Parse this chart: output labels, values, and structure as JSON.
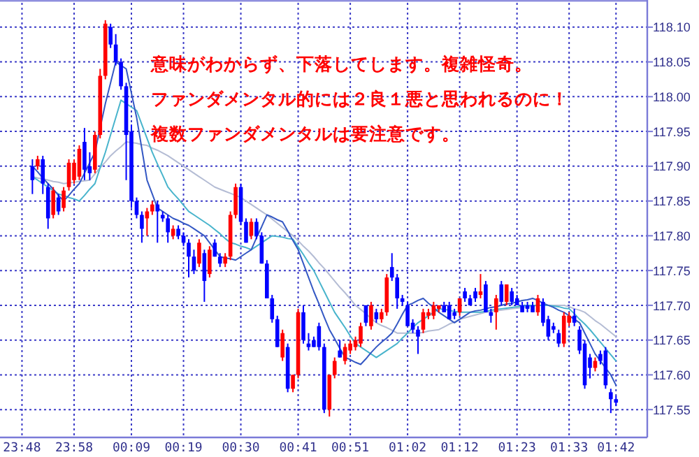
{
  "chart_data": {
    "type": "candlestick",
    "annotations": [
      "意味がわからず、下落してします。複雑怪奇。",
      "ファンダメンタル的には２良１悪と思われるのに！",
      "複数ファンダメンタルは要注意です。"
    ],
    "ylim": [
      117.51,
      118.135
    ],
    "grid": true,
    "yticks": [
      {
        "value": 117.55,
        "label": "117.55"
      },
      {
        "value": 117.6,
        "label": "117.60"
      },
      {
        "value": 117.65,
        "label": "117.65"
      },
      {
        "value": 117.7,
        "label": "117.70"
      },
      {
        "value": 117.75,
        "label": "117.75"
      },
      {
        "value": 117.8,
        "label": "117.80"
      },
      {
        "value": 117.85,
        "label": "117.85"
      },
      {
        "value": 117.9,
        "label": "117.90"
      },
      {
        "value": 117.95,
        "label": "117.95"
      },
      {
        "value": 118.0,
        "label": "118.00"
      },
      {
        "value": 118.05,
        "label": "118.05"
      },
      {
        "value": 118.1,
        "label": "118.10"
      }
    ],
    "categories": [
      "23:48",
      null,
      null,
      null,
      null,
      null,
      null,
      null,
      null,
      null,
      "23:58",
      null,
      null,
      null,
      null,
      null,
      null,
      null,
      null,
      null,
      null,
      "00:09",
      null,
      null,
      null,
      null,
      null,
      null,
      null,
      null,
      null,
      "00:19",
      null,
      null,
      null,
      null,
      null,
      null,
      null,
      null,
      null,
      null,
      "00:30",
      null,
      null,
      null,
      null,
      null,
      null,
      null,
      null,
      null,
      null,
      "00:41",
      null,
      null,
      null,
      null,
      null,
      null,
      null,
      null,
      null,
      "00:51",
      null,
      null,
      null,
      null,
      null,
      null,
      null,
      null,
      null,
      null,
      "01:02",
      null,
      null,
      null,
      null,
      null,
      null,
      null,
      null,
      null,
      "01:12",
      null,
      null,
      null,
      null,
      null,
      null,
      null,
      null,
      null,
      null,
      "01:23",
      null,
      null,
      null,
      null,
      null,
      null,
      null,
      null,
      null,
      "01:33",
      null,
      null,
      null,
      null,
      null,
      null,
      null,
      null,
      "01:42"
    ],
    "ohlc": [
      null,
      null,
      [
        117.9,
        117.91,
        117.86,
        117.88
      ],
      [
        117.9,
        117.915,
        117.895,
        117.91
      ],
      [
        117.91,
        117.915,
        117.86,
        117.875
      ],
      [
        117.87,
        117.875,
        117.81,
        117.825
      ],
      [
        117.83,
        117.87,
        117.825,
        117.865
      ],
      [
        117.855,
        117.86,
        117.83,
        117.835
      ],
      [
        117.84,
        117.87,
        117.835,
        117.865
      ],
      [
        117.87,
        117.91,
        117.865,
        117.905
      ],
      [
        117.88,
        117.91,
        117.875,
        117.905
      ],
      [
        117.885,
        117.93,
        117.88,
        117.925
      ],
      [
        117.935,
        117.955,
        117.88,
        117.895
      ],
      [
        117.9,
        117.92,
        117.88,
        117.89
      ],
      [
        117.895,
        117.95,
        117.89,
        117.945
      ],
      [
        117.945,
        118.04,
        117.94,
        118.03
      ],
      [
        118.03,
        118.11,
        118.025,
        118.105
      ],
      [
        118.1,
        118.105,
        118.07,
        118.075
      ],
      [
        118.075,
        118.09,
        118.045,
        118.05
      ],
      [
        118.05,
        118.055,
        118.01,
        118.015
      ],
      [
        118.015,
        118.02,
        117.88,
        117.945
      ],
      [
        117.95,
        117.96,
        117.84,
        117.85
      ],
      [
        117.85,
        117.855,
        117.825,
        117.83
      ],
      [
        117.83,
        117.835,
        117.79,
        117.81
      ],
      [
        117.825,
        117.84,
        117.8,
        117.835
      ],
      [
        117.835,
        117.85,
        117.83,
        117.845
      ],
      [
        117.845,
        117.85,
        117.79,
        117.835
      ],
      [
        117.83,
        117.835,
        117.82,
        117.825
      ],
      [
        117.825,
        117.83,
        117.79,
        117.805
      ],
      [
        117.8,
        117.815,
        117.795,
        117.81
      ],
      [
        117.81,
        117.815,
        117.795,
        117.8
      ],
      [
        117.8,
        117.805,
        117.785,
        117.79
      ],
      [
        117.79,
        117.795,
        117.74,
        117.77
      ],
      [
        117.77,
        117.78,
        117.745,
        117.75
      ],
      [
        117.76,
        117.795,
        117.755,
        117.79
      ],
      [
        117.775,
        117.78,
        117.705,
        117.735
      ],
      [
        117.745,
        117.785,
        117.74,
        117.78
      ],
      [
        117.79,
        117.795,
        117.77,
        117.77
      ],
      [
        117.77,
        117.775,
        117.755,
        117.76
      ],
      [
        117.76,
        117.775,
        117.755,
        117.77
      ],
      [
        117.77,
        117.835,
        117.765,
        117.83
      ],
      [
        117.83,
        117.875,
        117.825,
        117.87
      ],
      [
        117.87,
        117.875,
        117.815,
        117.82
      ],
      [
        117.82,
        117.825,
        117.79,
        117.79
      ],
      [
        117.8,
        117.825,
        117.795,
        117.82
      ],
      [
        117.82,
        117.825,
        117.795,
        117.8
      ],
      [
        117.8,
        117.805,
        117.76,
        117.76
      ],
      [
        117.76,
        117.765,
        117.71,
        117.71
      ],
      [
        117.71,
        117.715,
        117.675,
        117.68
      ],
      [
        117.68,
        117.685,
        117.64,
        117.64
      ],
      [
        117.625,
        117.665,
        117.62,
        117.66
      ],
      [
        117.64,
        117.645,
        117.575,
        117.58
      ],
      [
        117.58,
        117.6,
        117.575,
        117.6
      ],
      [
        117.6,
        117.695,
        117.595,
        117.69
      ],
      [
        117.69,
        117.7,
        117.645,
        117.65
      ],
      [
        117.645,
        117.66,
        117.635,
        117.64
      ],
      [
        117.65,
        117.655,
        117.64,
        117.64
      ],
      [
        117.67,
        117.675,
        117.635,
        117.64
      ],
      [
        117.64,
        117.645,
        117.545,
        117.55
      ],
      [
        117.55,
        117.6,
        117.54,
        117.6
      ],
      [
        117.6,
        117.625,
        117.595,
        117.62
      ],
      [
        117.635,
        117.65,
        117.625,
        117.625
      ],
      [
        117.62,
        117.645,
        117.615,
        117.64
      ],
      [
        117.635,
        117.65,
        117.63,
        117.645
      ],
      [
        117.64,
        117.655,
        117.635,
        117.65
      ],
      [
        117.645,
        117.675,
        117.64,
        117.67
      ],
      [
        117.7,
        117.7,
        117.67,
        117.675
      ],
      [
        117.67,
        117.705,
        117.665,
        117.7
      ],
      [
        117.69,
        117.695,
        117.675,
        117.68
      ],
      [
        117.68,
        117.695,
        117.675,
        117.69
      ],
      [
        117.69,
        117.745,
        117.685,
        117.74
      ],
      [
        117.755,
        117.775,
        117.735,
        117.74
      ],
      [
        117.74,
        117.745,
        117.695,
        117.71
      ],
      [
        117.71,
        117.715,
        117.7,
        117.705
      ],
      [
        117.7,
        117.705,
        117.67,
        117.67
      ],
      [
        117.675,
        117.68,
        117.66,
        117.665
      ],
      [
        117.665,
        117.67,
        117.63,
        117.655
      ],
      [
        117.665,
        117.695,
        117.66,
        117.69
      ],
      [
        117.685,
        117.695,
        117.68,
        117.69
      ],
      [
        117.685,
        117.705,
        117.68,
        117.7
      ],
      [
        117.695,
        117.7,
        117.69,
        117.7
      ],
      [
        117.7,
        117.705,
        117.69,
        117.69
      ],
      [
        117.7,
        117.705,
        117.68,
        117.68
      ],
      [
        117.69,
        117.695,
        117.68,
        117.685
      ],
      [
        117.69,
        117.71,
        117.685,
        117.71
      ],
      [
        117.72,
        117.725,
        117.705,
        117.71
      ],
      [
        117.71,
        117.715,
        117.7,
        117.7
      ],
      [
        117.72,
        117.725,
        117.705,
        117.71
      ],
      [
        117.715,
        117.745,
        117.71,
        117.72
      ],
      [
        117.73,
        117.735,
        117.69,
        117.69
      ],
      [
        117.69,
        117.695,
        117.675,
        117.685
      ],
      [
        117.69,
        117.715,
        117.665,
        117.71
      ],
      [
        117.73,
        117.735,
        117.7,
        117.705
      ],
      [
        117.705,
        117.73,
        117.7,
        117.73
      ],
      [
        117.72,
        117.725,
        117.7,
        117.705
      ],
      [
        117.71,
        117.715,
        117.7,
        117.7
      ],
      [
        117.7,
        117.705,
        117.69,
        117.69
      ],
      [
        117.7,
        117.705,
        117.69,
        117.695
      ],
      [
        117.7,
        117.705,
        117.69,
        117.69
      ],
      [
        117.69,
        117.715,
        117.685,
        117.71
      ],
      [
        117.705,
        117.71,
        117.67,
        117.675
      ],
      [
        117.68,
        117.685,
        117.65,
        117.655
      ],
      [
        117.67,
        117.675,
        117.66,
        117.665
      ],
      [
        117.66,
        117.665,
        117.64,
        117.645
      ],
      [
        117.645,
        117.69,
        117.64,
        117.685
      ],
      [
        117.675,
        117.69,
        117.67,
        117.685
      ],
      [
        117.685,
        117.695,
        117.67,
        117.675
      ],
      [
        117.665,
        117.67,
        117.63,
        117.635
      ],
      [
        117.645,
        117.65,
        117.58,
        117.585
      ],
      [
        117.625,
        117.63,
        117.595,
        117.61
      ],
      [
        117.61,
        117.625,
        117.605,
        117.62
      ],
      [
        117.63,
        117.635,
        117.615,
        117.62
      ],
      [
        117.635,
        117.64,
        117.58,
        117.585
      ],
      [
        117.575,
        117.58,
        117.545,
        117.565
      ],
      [
        117.565,
        117.57,
        117.555,
        117.56
      ]
    ],
    "series": [
      {
        "type": "line",
        "color": "#b4bcd4",
        "values": [
          null,
          null,
          117.885,
          117.883,
          117.882,
          117.88,
          117.878,
          117.877,
          117.875,
          117.876,
          117.877,
          117.878,
          117.879,
          117.88,
          117.889,
          117.898,
          117.906,
          117.915,
          117.922,
          117.928,
          117.935,
          117.934,
          117.933,
          117.931,
          117.93,
          117.926,
          117.923,
          117.919,
          117.915,
          117.91,
          117.905,
          117.9,
          117.895,
          117.89,
          117.885,
          117.88,
          117.875,
          117.87,
          117.867,
          117.864,
          117.861,
          117.858,
          117.855,
          117.85,
          117.845,
          117.84,
          117.835,
          117.83,
          117.824,
          117.818,
          117.812,
          117.806,
          117.8,
          117.793,
          117.785,
          117.778,
          117.77,
          117.761,
          117.753,
          117.744,
          117.735,
          117.726,
          117.718,
          117.709,
          117.7,
          117.694,
          117.688,
          117.681,
          117.675,
          117.671,
          117.668,
          117.664,
          117.66,
          117.66,
          117.66,
          117.66,
          117.66,
          117.661,
          117.663,
          117.664,
          117.665,
          117.669,
          117.673,
          117.676,
          117.68,
          117.682,
          117.684,
          117.686,
          117.688,
          117.69,
          117.691,
          117.692,
          117.693,
          117.694,
          117.695,
          117.696,
          117.697,
          117.698,
          117.699,
          117.7,
          117.7,
          117.7,
          117.7,
          117.7,
          117.7,
          117.698,
          117.695,
          117.693,
          117.69,
          117.684,
          117.678,
          117.673,
          117.667,
          117.661,
          117.655
        ]
      },
      {
        "type": "line",
        "color": "#48b4cc",
        "values": [
          null,
          null,
          117.885,
          117.88,
          117.875,
          117.87,
          117.865,
          117.86,
          117.858,
          117.855,
          117.853,
          117.85,
          117.858,
          117.867,
          117.875,
          117.898,
          117.92,
          117.945,
          117.97,
          117.995,
          117.99,
          117.985,
          117.98,
          117.96,
          117.94,
          117.92,
          117.903,
          117.887,
          117.87,
          117.861,
          117.853,
          117.844,
          117.835,
          117.83,
          117.825,
          117.82,
          117.815,
          117.809,
          117.803,
          117.796,
          117.79,
          117.788,
          117.785,
          117.783,
          117.78,
          117.785,
          117.79,
          117.795,
          117.8,
          117.799,
          117.798,
          117.796,
          117.795,
          117.784,
          117.773,
          117.761,
          117.75,
          117.735,
          117.72,
          117.705,
          117.69,
          117.679,
          117.668,
          117.656,
          117.645,
          117.64,
          117.635,
          117.63,
          117.625,
          117.63,
          117.635,
          117.64,
          117.645,
          117.653,
          117.66,
          117.668,
          117.675,
          117.68,
          117.685,
          117.69,
          117.695,
          117.694,
          117.693,
          117.691,
          117.69,
          117.69,
          117.69,
          117.69,
          117.69,
          117.691,
          117.693,
          117.694,
          117.695,
          117.696,
          117.697,
          117.698,
          117.699,
          117.7,
          117.7,
          117.7,
          117.7,
          117.7,
          117.699,
          117.698,
          117.696,
          117.695,
          117.688,
          117.68,
          117.673,
          117.665,
          117.656,
          117.647,
          117.638,
          117.629,
          117.62
        ]
      },
      {
        "type": "line",
        "color": "#3458c4",
        "values": [
          null,
          null,
          117.9,
          117.892,
          117.883,
          117.875,
          117.867,
          117.858,
          117.85,
          117.858,
          117.867,
          117.875,
          117.89,
          117.905,
          117.92,
          117.955,
          117.99,
          118.02,
          118.05,
          118.045,
          118.04,
          118.005,
          117.97,
          117.925,
          117.88,
          117.86,
          117.84,
          117.835,
          117.83,
          117.825,
          117.822,
          117.818,
          117.815,
          117.81,
          117.805,
          117.8,
          117.79,
          117.78,
          117.77,
          117.768,
          117.767,
          117.765,
          117.77,
          117.775,
          117.78,
          117.797,
          117.813,
          117.83,
          117.827,
          117.823,
          117.82,
          117.807,
          117.793,
          117.78,
          117.76,
          117.74,
          117.72,
          117.702,
          117.683,
          117.665,
          117.652,
          117.638,
          117.625,
          117.622,
          117.618,
          117.615,
          117.623,
          117.632,
          117.64,
          117.647,
          117.653,
          117.66,
          117.673,
          117.687,
          117.7,
          117.703,
          117.707,
          117.71,
          117.703,
          117.697,
          117.69,
          117.685,
          117.68,
          117.675,
          117.68,
          117.685,
          117.69,
          117.692,
          117.693,
          117.695,
          117.697,
          117.698,
          117.7,
          117.702,
          117.703,
          117.705,
          117.707,
          117.708,
          117.71,
          117.707,
          117.703,
          117.7,
          117.697,
          117.693,
          117.69,
          117.685,
          117.68,
          117.675,
          117.66,
          117.645,
          117.63,
          117.62,
          117.61,
          117.6,
          117.585
        ]
      }
    ]
  }
}
